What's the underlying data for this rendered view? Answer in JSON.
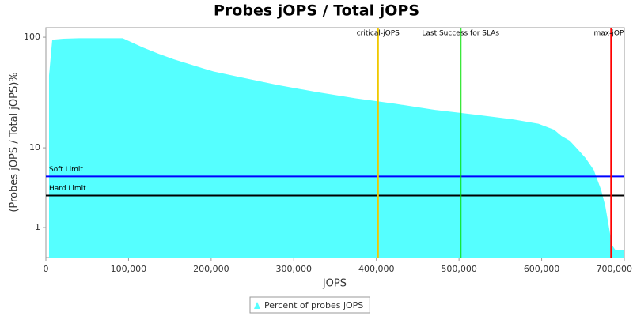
{
  "chart_data": {
    "type": "area",
    "title": "Probes jOPS / Total jOPS",
    "xlabel": "jOPS",
    "ylabel": "(Probes jOPS / Total jOPS)%",
    "x": [
      3800,
      7700,
      21000,
      40000,
      93000,
      117000,
      136000,
      155000,
      184000,
      203000,
      232000,
      280000,
      327000,
      375000,
      423000,
      471000,
      519000,
      567000,
      596000,
      615000,
      624000,
      634000,
      643000,
      653000,
      663000,
      672000,
      677000,
      682000,
      685000,
      689000,
      693000,
      700000
    ],
    "series": [
      {
        "name": "Percent of probes jOPS",
        "color": "#55ffff",
        "values": [
          45,
          95,
          97,
          98,
          98,
          81,
          71,
          63,
          54,
          49,
          44,
          37,
          32,
          28,
          25,
          22,
          20,
          18,
          16.5,
          14.6,
          12.8,
          11.6,
          9.8,
          7.9,
          5.9,
          3.5,
          2.2,
          0.9,
          0.36,
          0.22,
          0.22,
          0.22
        ]
      }
    ],
    "xlim": [
      0,
      700000
    ],
    "xticks": [
      0,
      {
        "value": 100000,
        "label": "100,000"
      },
      {
        "value": 200000,
        "label": "200,000"
      },
      {
        "value": 300000,
        "label": "300,000"
      },
      {
        "value": 400000,
        "label": "400,000"
      },
      {
        "value": 500000,
        "label": "500,000"
      },
      {
        "value": 600000,
        "label": "600,000"
      },
      {
        "value": 700000,
        "label": "700,000"
      }
    ],
    "ylim": [
      0.02,
      122
    ],
    "yticks": [
      1,
      10,
      100
    ],
    "yscale": "log",
    "vertical_markers": [
      {
        "label": "critical-jOPS",
        "value": 402000,
        "color": "#f0c800"
      },
      {
        "label": "Last Success for SLAs",
        "value": 502000,
        "color": "#00e000"
      },
      {
        "label": "max-jOPS",
        "value": 684000,
        "color": "#ff0000"
      }
    ],
    "horizontal_markers": [
      {
        "label": "Soft Limit",
        "value": 5,
        "color": "#0000ff"
      },
      {
        "label": "Hard Limit",
        "value": 3,
        "color": "#000000"
      }
    ],
    "legend": "bottom"
  }
}
